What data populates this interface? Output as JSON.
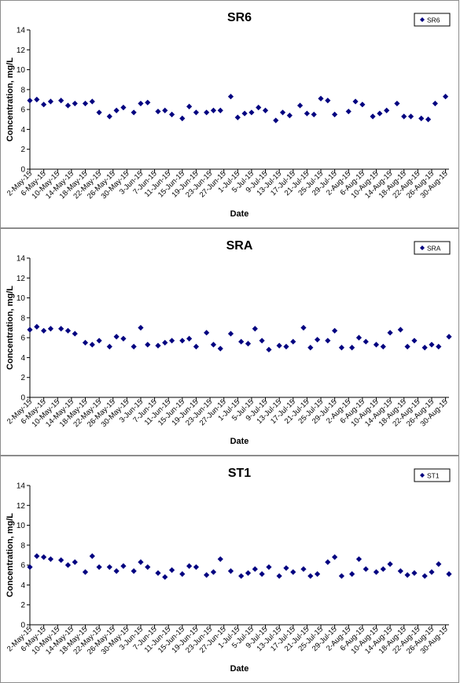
{
  "chart_data": [
    {
      "type": "scatter",
      "title": "SR6",
      "xlabel": "Date",
      "ylabel": "Concentration, mg/L",
      "ylim": [
        0,
        14
      ],
      "yticks": [
        0,
        2,
        4,
        6,
        8,
        10,
        12,
        14
      ],
      "xlim": [
        "2015-05-02",
        "2015-08-31"
      ],
      "xtick_labels": [
        "2-May-15",
        "6-May-15",
        "10-May-15",
        "14-May-15",
        "18-May-15",
        "22-May-15",
        "26-May-15",
        "30-May-15",
        "3-Jun-15",
        "7-Jun-15",
        "11-Jun-15",
        "15-Jun-15",
        "19-Jun-15",
        "23-Jun-15",
        "27-Jun-15",
        "1-Jul-15",
        "5-Jul-15",
        "9-Jul-15",
        "13-Jul-15",
        "17-Jul-15",
        "21-Jul-15",
        "25-Jul-15",
        "29-Jul-15",
        "2-Aug-15",
        "6-Aug-15",
        "10-Aug-15",
        "14-Aug-15",
        "18-Aug-15",
        "22-Aug-15",
        "26-Aug-15",
        "30-Aug-15"
      ],
      "legend": "top-right",
      "series": [
        {
          "name": "SR6",
          "color": "#000080",
          "points": [
            [
              "2015-05-02",
              6.9
            ],
            [
              "2015-05-04",
              7.0
            ],
            [
              "2015-05-06",
              6.5
            ],
            [
              "2015-05-08",
              6.8
            ],
            [
              "2015-05-11",
              6.9
            ],
            [
              "2015-05-13",
              6.4
            ],
            [
              "2015-05-15",
              6.6
            ],
            [
              "2015-05-18",
              6.6
            ],
            [
              "2015-05-20",
              6.8
            ],
            [
              "2015-05-22",
              5.7
            ],
            [
              "2015-05-25",
              5.3
            ],
            [
              "2015-05-27",
              5.9
            ],
            [
              "2015-05-29",
              6.2
            ],
            [
              "2015-06-01",
              5.7
            ],
            [
              "2015-06-03",
              6.6
            ],
            [
              "2015-06-05",
              6.7
            ],
            [
              "2015-06-08",
              5.8
            ],
            [
              "2015-06-10",
              5.9
            ],
            [
              "2015-06-12",
              5.5
            ],
            [
              "2015-06-15",
              5.1
            ],
            [
              "2015-06-17",
              6.3
            ],
            [
              "2015-06-19",
              5.7
            ],
            [
              "2015-06-22",
              5.7
            ],
            [
              "2015-06-24",
              5.9
            ],
            [
              "2015-06-26",
              5.9
            ],
            [
              "2015-06-29",
              7.3
            ],
            [
              "2015-07-01",
              5.2
            ],
            [
              "2015-07-03",
              5.6
            ],
            [
              "2015-07-05",
              5.7
            ],
            [
              "2015-07-07",
              6.2
            ],
            [
              "2015-07-09",
              5.9
            ],
            [
              "2015-07-12",
              4.9
            ],
            [
              "2015-07-14",
              5.7
            ],
            [
              "2015-07-16",
              5.4
            ],
            [
              "2015-07-19",
              6.4
            ],
            [
              "2015-07-21",
              5.6
            ],
            [
              "2015-07-23",
              5.5
            ],
            [
              "2015-07-25",
              7.1
            ],
            [
              "2015-07-27",
              6.9
            ],
            [
              "2015-07-29",
              5.5
            ],
            [
              "2015-08-02",
              5.8
            ],
            [
              "2015-08-04",
              6.8
            ],
            [
              "2015-08-06",
              6.5
            ],
            [
              "2015-08-09",
              5.3
            ],
            [
              "2015-08-11",
              5.6
            ],
            [
              "2015-08-13",
              5.9
            ],
            [
              "2015-08-16",
              6.6
            ],
            [
              "2015-08-18",
              5.3
            ],
            [
              "2015-08-20",
              5.3
            ],
            [
              "2015-08-23",
              5.1
            ],
            [
              "2015-08-25",
              5.0
            ],
            [
              "2015-08-27",
              6.6
            ],
            [
              "2015-08-30",
              7.3
            ]
          ]
        }
      ]
    },
    {
      "type": "scatter",
      "title": "SRA",
      "xlabel": "Date",
      "ylabel": "Concentration, mg/L",
      "ylim": [
        0,
        14
      ],
      "yticks": [
        0,
        2,
        4,
        6,
        8,
        10,
        12,
        14
      ],
      "xlim": [
        "2015-05-02",
        "2015-08-31"
      ],
      "xtick_labels": [
        "2-May-15",
        "6-May-15",
        "10-May-15",
        "14-May-15",
        "18-May-15",
        "22-May-15",
        "26-May-15",
        "30-May-15",
        "3-Jun-15",
        "7-Jun-15",
        "11-Jun-15",
        "15-Jun-15",
        "19-Jun-15",
        "23-Jun-15",
        "27-Jun-15",
        "1-Jul-15",
        "5-Jul-15",
        "9-Jul-15",
        "13-Jul-15",
        "17-Jul-15",
        "21-Jul-15",
        "25-Jul-15",
        "29-Jul-15",
        "2-Aug-15",
        "6-Aug-15",
        "10-Aug-15",
        "14-Aug-15",
        "18-Aug-15",
        "22-Aug-15",
        "26-Aug-15",
        "30-Aug-15"
      ],
      "legend": "top-right",
      "series": [
        {
          "name": "SRA",
          "color": "#000080",
          "points": [
            [
              "2015-05-02",
              6.8
            ],
            [
              "2015-05-04",
              7.1
            ],
            [
              "2015-05-06",
              6.7
            ],
            [
              "2015-05-08",
              6.9
            ],
            [
              "2015-05-11",
              6.9
            ],
            [
              "2015-05-13",
              6.7
            ],
            [
              "2015-05-15",
              6.4
            ],
            [
              "2015-05-18",
              5.5
            ],
            [
              "2015-05-20",
              5.3
            ],
            [
              "2015-05-22",
              5.7
            ],
            [
              "2015-05-25",
              5.1
            ],
            [
              "2015-05-27",
              6.1
            ],
            [
              "2015-05-29",
              5.9
            ],
            [
              "2015-06-01",
              5.1
            ],
            [
              "2015-06-03",
              7.0
            ],
            [
              "2015-06-05",
              5.3
            ],
            [
              "2015-06-08",
              5.2
            ],
            [
              "2015-06-10",
              5.5
            ],
            [
              "2015-06-12",
              5.7
            ],
            [
              "2015-06-15",
              5.7
            ],
            [
              "2015-06-17",
              5.9
            ],
            [
              "2015-06-19",
              5.1
            ],
            [
              "2015-06-22",
              6.5
            ],
            [
              "2015-06-24",
              5.3
            ],
            [
              "2015-06-26",
              4.9
            ],
            [
              "2015-06-29",
              6.4
            ],
            [
              "2015-07-02",
              5.6
            ],
            [
              "2015-07-04",
              5.4
            ],
            [
              "2015-07-06",
              6.9
            ],
            [
              "2015-07-08",
              5.7
            ],
            [
              "2015-07-10",
              4.8
            ],
            [
              "2015-07-13",
              5.2
            ],
            [
              "2015-07-15",
              5.1
            ],
            [
              "2015-07-17",
              5.6
            ],
            [
              "2015-07-20",
              7.0
            ],
            [
              "2015-07-22",
              5.0
            ],
            [
              "2015-07-24",
              5.8
            ],
            [
              "2015-07-27",
              5.7
            ],
            [
              "2015-07-29",
              6.7
            ],
            [
              "2015-07-31",
              5.0
            ],
            [
              "2015-08-03",
              5.0
            ],
            [
              "2015-08-05",
              6.0
            ],
            [
              "2015-08-07",
              5.6
            ],
            [
              "2015-08-10",
              5.3
            ],
            [
              "2015-08-12",
              5.1
            ],
            [
              "2015-08-14",
              6.5
            ],
            [
              "2015-08-17",
              6.8
            ],
            [
              "2015-08-19",
              5.1
            ],
            [
              "2015-08-21",
              5.7
            ],
            [
              "2015-08-24",
              5.0
            ],
            [
              "2015-08-26",
              5.3
            ],
            [
              "2015-08-28",
              5.1
            ],
            [
              "2015-08-31",
              6.1
            ]
          ]
        }
      ]
    },
    {
      "type": "scatter",
      "title": "ST1",
      "xlabel": "Date",
      "ylabel": "Concentration, mg/L",
      "ylim": [
        0,
        14
      ],
      "yticks": [
        0,
        2,
        4,
        6,
        8,
        10,
        12,
        14
      ],
      "xlim": [
        "2015-05-02",
        "2015-08-31"
      ],
      "xtick_labels": [
        "2-May-15",
        "6-May-15",
        "10-May-15",
        "14-May-15",
        "18-May-15",
        "22-May-15",
        "26-May-15",
        "30-May-15",
        "3-Jun-15",
        "7-Jun-15",
        "11-Jun-15",
        "15-Jun-15",
        "19-Jun-15",
        "23-Jun-15",
        "27-Jun-15",
        "1-Jul-15",
        "5-Jul-15",
        "9-Jul-15",
        "13-Jul-15",
        "17-Jul-15",
        "21-Jul-15",
        "25-Jul-15",
        "29-Jul-15",
        "2-Aug-15",
        "6-Aug-15",
        "10-Aug-15",
        "14-Aug-15",
        "18-Aug-15",
        "22-Aug-15",
        "26-Aug-15",
        "30-Aug-15"
      ],
      "legend": "top-right",
      "series": [
        {
          "name": "ST1",
          "color": "#000080",
          "points": [
            [
              "2015-05-02",
              5.8
            ],
            [
              "2015-05-04",
              6.9
            ],
            [
              "2015-05-06",
              6.8
            ],
            [
              "2015-05-08",
              6.6
            ],
            [
              "2015-05-11",
              6.5
            ],
            [
              "2015-05-13",
              6.0
            ],
            [
              "2015-05-15",
              6.3
            ],
            [
              "2015-05-18",
              5.3
            ],
            [
              "2015-05-20",
              6.9
            ],
            [
              "2015-05-22",
              5.8
            ],
            [
              "2015-05-25",
              5.8
            ],
            [
              "2015-05-27",
              5.4
            ],
            [
              "2015-05-29",
              5.9
            ],
            [
              "2015-06-01",
              5.4
            ],
            [
              "2015-06-03",
              6.3
            ],
            [
              "2015-06-05",
              5.8
            ],
            [
              "2015-06-08",
              5.2
            ],
            [
              "2015-06-10",
              4.8
            ],
            [
              "2015-06-12",
              5.5
            ],
            [
              "2015-06-15",
              5.1
            ],
            [
              "2015-06-17",
              5.9
            ],
            [
              "2015-06-19",
              5.8
            ],
            [
              "2015-06-22",
              5.0
            ],
            [
              "2015-06-24",
              5.3
            ],
            [
              "2015-06-26",
              6.6
            ],
            [
              "2015-06-29",
              5.4
            ],
            [
              "2015-07-02",
              4.9
            ],
            [
              "2015-07-04",
              5.2
            ],
            [
              "2015-07-06",
              5.6
            ],
            [
              "2015-07-08",
              5.1
            ],
            [
              "2015-07-10",
              5.8
            ],
            [
              "2015-07-13",
              4.9
            ],
            [
              "2015-07-15",
              5.7
            ],
            [
              "2015-07-17",
              5.3
            ],
            [
              "2015-07-20",
              5.6
            ],
            [
              "2015-07-22",
              4.9
            ],
            [
              "2015-07-24",
              5.1
            ],
            [
              "2015-07-27",
              6.3
            ],
            [
              "2015-07-29",
              6.8
            ],
            [
              "2015-07-31",
              4.9
            ],
            [
              "2015-08-03",
              5.1
            ],
            [
              "2015-08-05",
              6.6
            ],
            [
              "2015-08-07",
              5.6
            ],
            [
              "2015-08-10",
              5.3
            ],
            [
              "2015-08-12",
              5.6
            ],
            [
              "2015-08-14",
              6.1
            ],
            [
              "2015-08-17",
              5.4
            ],
            [
              "2015-08-19",
              5.0
            ],
            [
              "2015-08-21",
              5.2
            ],
            [
              "2015-08-24",
              4.9
            ],
            [
              "2015-08-26",
              5.3
            ],
            [
              "2015-08-28",
              6.1
            ],
            [
              "2015-08-31",
              5.1
            ]
          ]
        }
      ]
    }
  ]
}
